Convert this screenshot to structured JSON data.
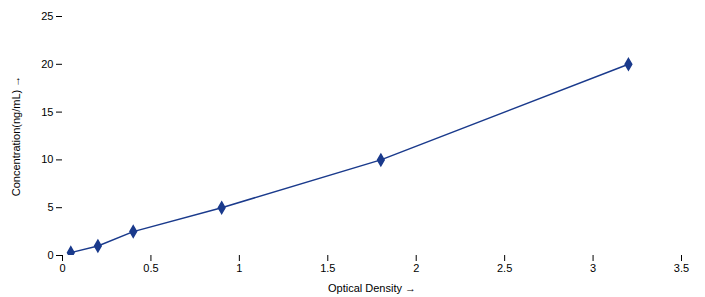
{
  "chart_data": {
    "type": "line",
    "x": [
      0.047,
      0.2,
      0.4,
      0.9,
      1.8,
      3.2
    ],
    "values": [
      0.3,
      1.0,
      2.5,
      5.0,
      10.0,
      20.0
    ],
    "xlabel": "Optical Density",
    "ylabel": "Concentration(ng/mL)",
    "xlim": [
      0,
      3.5
    ],
    "ylim": [
      0,
      25
    ],
    "xticks": [
      0,
      0.5,
      1,
      1.5,
      2,
      2.5,
      3,
      3.5
    ],
    "yticks": [
      0,
      5,
      10,
      15,
      20,
      25
    ],
    "color": "#1a3a8c",
    "marker": "diamond"
  }
}
